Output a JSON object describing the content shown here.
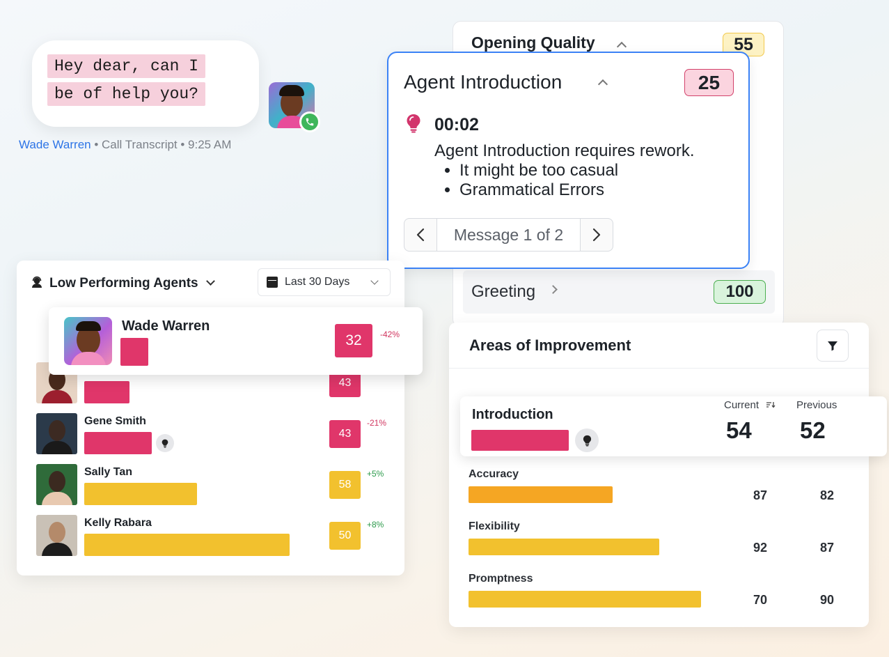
{
  "chat": {
    "lines": [
      "Hey dear, can I",
      "be of help you?"
    ],
    "sender_name": "Wade Warren",
    "meta_rest": " • Call Transcript • 9:25 AM"
  },
  "opening_quality": {
    "title": "Opening Quality",
    "score": "55"
  },
  "agent_introduction": {
    "title": "Agent Introduction",
    "score": "25",
    "timestamp": "00:02",
    "message": "Agent Introduction requires rework.",
    "bullets": [
      "It might be too casual",
      "Grammatical Errors"
    ],
    "pager_label": "Message 1 of 2"
  },
  "greeting": {
    "label": "Greeting",
    "score": "100"
  },
  "areas_of_improvement": {
    "title": "Areas of Improvement",
    "current_label": "Current",
    "previous_label": "Previous",
    "highlight": {
      "label": "Introduction",
      "current": "54",
      "previous": "52",
      "bar_fraction": 0.54
    },
    "rows": [
      {
        "label": "Accuracy",
        "current": "87",
        "previous": "82",
        "color": "#f5a623",
        "bar_fraction": 0.62
      },
      {
        "label": "Flexibility",
        "current": "92",
        "previous": "87",
        "color": "#f2c12e",
        "bar_fraction": 0.82
      },
      {
        "label": "Promptness",
        "current": "70",
        "previous": "90",
        "color": "#f2c12e",
        "bar_fraction": 1.0
      }
    ]
  },
  "low_performing_agents": {
    "title": "Low Performing Agents",
    "date_range": "Last 30 Days",
    "highlight": {
      "name": "Wade Warren",
      "score": "32",
      "delta": "-42%"
    },
    "agents": [
      {
        "name": "",
        "score": "43",
        "delta": "",
        "color": "#e0366a",
        "bar_fraction": 0.22
      },
      {
        "name": "Gene Smith",
        "score": "43",
        "delta": "-21%",
        "color": "#e0366a",
        "bar_fraction": 0.33,
        "insight": true
      },
      {
        "name": "Sally Tan",
        "score": "58",
        "delta": "+5%",
        "color": "#f2c12e",
        "bar_fraction": 0.55
      },
      {
        "name": "Kelly Rabara",
        "score": "50",
        "delta": "+8%",
        "color": "#f2c12e",
        "bar_fraction": 1.0
      }
    ]
  },
  "colors": {
    "accent_blue": "#3b82f6",
    "low_red": "#e0366a",
    "mid_yellow": "#f2c12e",
    "good_green": "#4caf50"
  },
  "icons": [
    "phone-icon",
    "chevron-up-icon",
    "lightbulb-icon",
    "chevron-left-icon",
    "chevron-right-icon",
    "chevron-right-icon",
    "filter-icon",
    "sort-icon",
    "agent-headset-icon",
    "calendar-icon",
    "chevron-down-icon"
  ]
}
